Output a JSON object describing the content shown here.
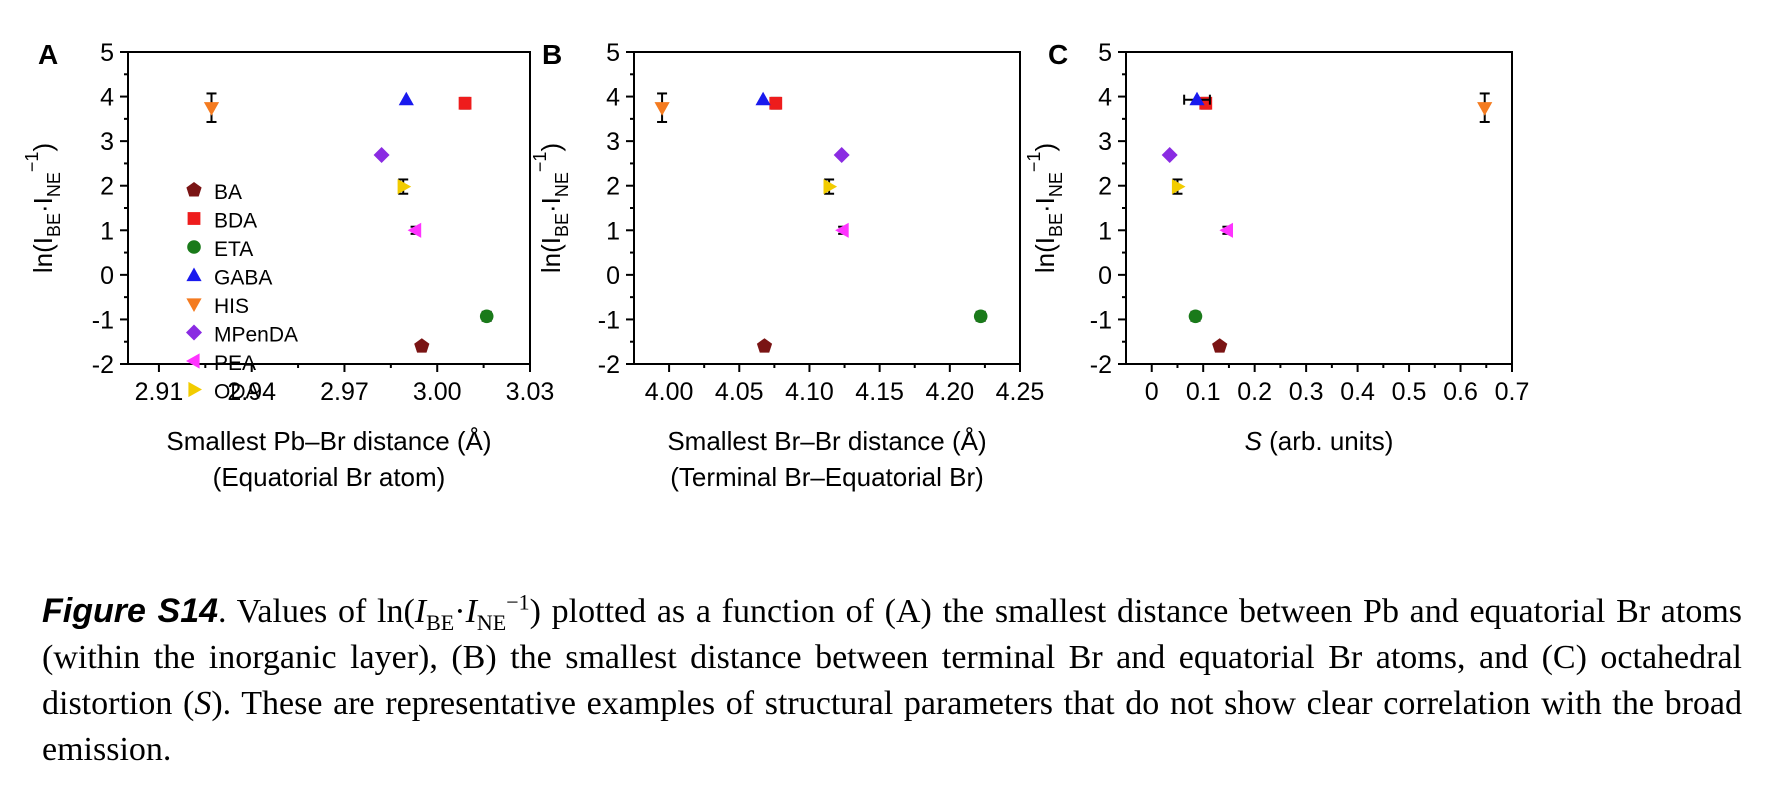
{
  "series_styles": [
    {
      "name": "BA",
      "color": "#7a1414",
      "marker": "pentagon"
    },
    {
      "name": "BDA",
      "color": "#ee1c1c",
      "marker": "square"
    },
    {
      "name": "ETA",
      "color": "#1a7a1a",
      "marker": "circle"
    },
    {
      "name": "GABA",
      "color": "#1a1aee",
      "marker": "triangle-up"
    },
    {
      "name": "HIS",
      "color": "#f47b20",
      "marker": "triangle-down"
    },
    {
      "name": "MPenDA",
      "color": "#8a2be2",
      "marker": "diamond"
    },
    {
      "name": "PEA",
      "color": "#ff33ff",
      "marker": "triangle-left"
    },
    {
      "name": "ODA",
      "color": "#f2cc00",
      "marker": "triangle-right"
    }
  ],
  "ylabel": "ln(I_BE·I_NE^-1)",
  "chart_data": [
    {
      "type": "scatter",
      "panel": "A",
      "xlabel_line1": "Smallest Pb–Br distance (Å)",
      "xlabel_line2": "(Equatorial Br atom)",
      "xlim": [
        2.9,
        3.03
      ],
      "xticks": [
        "2.91",
        "2.94",
        "2.97",
        "3.00",
        "3.03"
      ],
      "xtick_values": [
        2.91,
        2.94,
        2.97,
        3.0,
        3.03
      ],
      "ylim": [
        -2,
        5
      ],
      "yticks": [
        "-2",
        "-1",
        "0",
        "1",
        "2",
        "3",
        "4",
        "5"
      ],
      "legend": "left",
      "series": [
        {
          "name": "BA",
          "x": 2.995,
          "y": -1.6,
          "err": 0
        },
        {
          "name": "BDA",
          "x": 3.009,
          "y": 3.85,
          "err": 0.12
        },
        {
          "name": "ETA",
          "x": 3.016,
          "y": -0.93,
          "err": 0.1
        },
        {
          "name": "GABA",
          "x": 2.99,
          "y": 3.93,
          "err": 0
        },
        {
          "name": "HIS",
          "x": 2.927,
          "y": 3.75,
          "err": 0.32
        },
        {
          "name": "MPenDA",
          "x": 2.982,
          "y": 2.69,
          "err": 0
        },
        {
          "name": "PEA",
          "x": 2.993,
          "y": 1.0,
          "err": 0.08
        },
        {
          "name": "ODA",
          "x": 2.989,
          "y": 1.98,
          "err": 0.16
        }
      ]
    },
    {
      "type": "scatter",
      "panel": "B",
      "xlabel_line1": "Smallest Br–Br distance (Å)",
      "xlabel_line2": "(Terminal Br–Equatorial Br)",
      "xlim": [
        3.975,
        4.25
      ],
      "xticks": [
        "4.00",
        "4.05",
        "4.10",
        "4.15",
        "4.20",
        "4.25"
      ],
      "xtick_values": [
        4.0,
        4.05,
        4.1,
        4.15,
        4.2,
        4.25
      ],
      "ylim": [
        -2,
        5
      ],
      "yticks": [
        "-2",
        "-1",
        "0",
        "1",
        "2",
        "3",
        "4",
        "5"
      ],
      "series": [
        {
          "name": "BA",
          "x": 4.068,
          "y": -1.6,
          "err": 0
        },
        {
          "name": "BDA",
          "x": 4.076,
          "y": 3.85,
          "err": 0.12
        },
        {
          "name": "ETA",
          "x": 4.222,
          "y": -0.93,
          "err": 0.1
        },
        {
          "name": "GABA",
          "x": 4.067,
          "y": 3.93,
          "err": 0
        },
        {
          "name": "HIS",
          "x": 3.995,
          "y": 3.75,
          "err": 0.32
        },
        {
          "name": "MPenDA",
          "x": 4.123,
          "y": 2.69,
          "err": 0
        },
        {
          "name": "PEA",
          "x": 4.124,
          "y": 1.0,
          "err": 0.08
        },
        {
          "name": "ODA",
          "x": 4.114,
          "y": 1.98,
          "err": 0.16
        }
      ]
    },
    {
      "type": "scatter",
      "panel": "C",
      "xlabel_line1": "S (arb. units)",
      "xlabel_line2": "",
      "xlim": [
        -0.05,
        0.7
      ],
      "xticks": [
        "0",
        "0.1",
        "0.2",
        "0.3",
        "0.4",
        "0.5",
        "0.6",
        "0.7"
      ],
      "xtick_values": [
        0,
        0.1,
        0.2,
        0.3,
        0.4,
        0.5,
        0.6,
        0.7
      ],
      "ylim": [
        -2,
        5
      ],
      "yticks": [
        "-2",
        "-1",
        "0",
        "1",
        "2",
        "3",
        "4",
        "5"
      ],
      "series": [
        {
          "name": "BA",
          "x": 0.132,
          "y": -1.6,
          "err": 0
        },
        {
          "name": "BDA",
          "x": 0.105,
          "y": 3.85,
          "err": 0.12
        },
        {
          "name": "ETA",
          "x": 0.085,
          "y": -0.93,
          "err": 0.1
        },
        {
          "name": "GABA",
          "x": 0.088,
          "y": 3.93,
          "err": 0,
          "xerr": 0.025
        },
        {
          "name": "HIS",
          "x": 0.647,
          "y": 3.75,
          "err": 0.32
        },
        {
          "name": "MPenDA",
          "x": 0.035,
          "y": 2.69,
          "err": 0
        },
        {
          "name": "PEA",
          "x": 0.147,
          "y": 1.0,
          "err": 0.08
        },
        {
          "name": "ODA",
          "x": 0.05,
          "y": 1.98,
          "err": 0.16
        }
      ]
    }
  ],
  "caption": {
    "label": "Figure S14",
    "text_before": ". Values of ln(",
    "text_after": ") plotted as a function of (A) the smallest distance between Pb and equatorial Br atoms (within the inorganic layer), (B) the smallest distance between terminal Br and equatorial Br atoms, and (C) octahedral distortion (",
    "text_end": "). These are representative examples of structural parameters that do not show clear correlation with the broad emission."
  }
}
